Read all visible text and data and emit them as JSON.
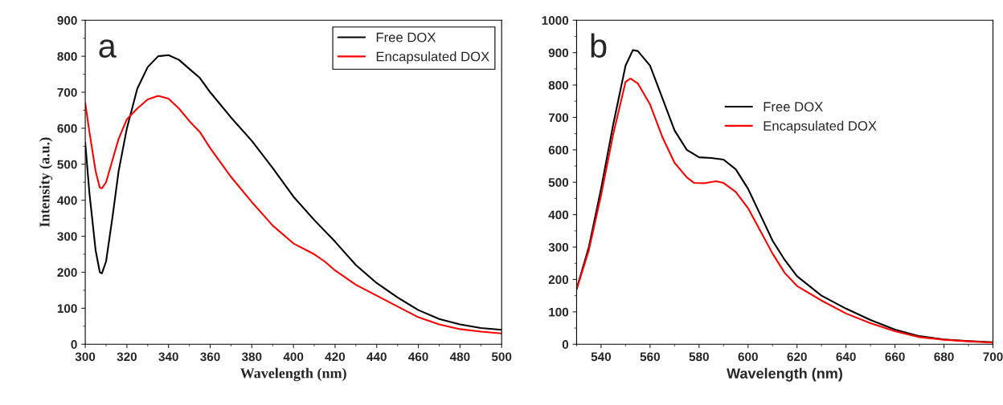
{
  "chart_data": [
    {
      "type": "line",
      "xlabel": "Wavelength (nm)",
      "ylabel": "Intensity (a.u.)",
      "annotations": [
        "a"
      ],
      "xlim": [
        300,
        500
      ],
      "ylim": [
        0,
        900
      ],
      "xticks": [
        300,
        320,
        340,
        360,
        380,
        400,
        420,
        440,
        460,
        480,
        500
      ],
      "yticks": [
        0,
        100,
        200,
        300,
        400,
        500,
        600,
        700,
        800,
        900
      ],
      "legend": "top right",
      "grid": false,
      "series": [
        {
          "name": "Free DOX",
          "color": "#000000",
          "x": [
            300,
            302,
            305,
            307,
            308,
            310,
            313,
            316,
            320,
            325,
            330,
            335,
            340,
            345,
            350,
            355,
            360,
            370,
            380,
            390,
            400,
            410,
            420,
            430,
            440,
            450,
            460,
            470,
            480,
            490,
            500
          ],
          "values": [
            560,
            420,
            260,
            200,
            197,
            230,
            350,
            480,
            600,
            710,
            770,
            800,
            803,
            790,
            765,
            740,
            700,
            630,
            565,
            490,
            410,
            345,
            285,
            220,
            170,
            130,
            95,
            70,
            55,
            45,
            40
          ]
        },
        {
          "name": "Encapsulated DOX",
          "color": "#ff0000",
          "x": [
            300,
            302,
            305,
            307,
            308,
            310,
            313,
            316,
            320,
            325,
            330,
            335,
            340,
            345,
            350,
            355,
            360,
            370,
            380,
            390,
            400,
            410,
            415,
            420,
            430,
            440,
            450,
            460,
            470,
            480,
            490,
            500
          ],
          "values": [
            670,
            590,
            480,
            435,
            433,
            450,
            510,
            570,
            625,
            655,
            680,
            690,
            682,
            655,
            620,
            590,
            545,
            465,
            395,
            330,
            280,
            250,
            230,
            205,
            165,
            135,
            105,
            75,
            55,
            42,
            35,
            30
          ]
        }
      ]
    },
    {
      "type": "line",
      "xlabel": "Wavelength (nm)",
      "annotations": [
        "b"
      ],
      "xlim": [
        530,
        700
      ],
      "ylim": [
        0,
        1000
      ],
      "xticks": [
        540,
        560,
        580,
        600,
        620,
        640,
        660,
        680,
        700
      ],
      "yticks": [
        0,
        100,
        200,
        300,
        400,
        500,
        600,
        700,
        800,
        900,
        1000
      ],
      "legend": "right",
      "grid": false,
      "series": [
        {
          "name": "Free DOX",
          "color": "#000000",
          "x": [
            530,
            535,
            540,
            545,
            550,
            553,
            555,
            560,
            565,
            570,
            575,
            580,
            585,
            590,
            595,
            600,
            605,
            610,
            615,
            620,
            630,
            640,
            650,
            660,
            670,
            680,
            690,
            700
          ],
          "values": [
            170,
            300,
            480,
            680,
            860,
            908,
            905,
            860,
            760,
            660,
            600,
            577,
            575,
            570,
            540,
            480,
            400,
            320,
            260,
            210,
            150,
            110,
            75,
            45,
            25,
            15,
            10,
            6
          ]
        },
        {
          "name": "Encapsulated DOX",
          "color": "#ff0000",
          "x": [
            530,
            535,
            540,
            545,
            550,
            552,
            555,
            560,
            565,
            570,
            575,
            578,
            582,
            587,
            590,
            595,
            600,
            605,
            610,
            615,
            620,
            630,
            640,
            650,
            660,
            670,
            680,
            690,
            700
          ],
          "values": [
            170,
            290,
            460,
            650,
            810,
            820,
            805,
            740,
            640,
            560,
            515,
            498,
            497,
            503,
            498,
            470,
            420,
            350,
            280,
            220,
            180,
            135,
            95,
            65,
            40,
            22,
            14,
            9,
            5
          ]
        }
      ]
    }
  ]
}
